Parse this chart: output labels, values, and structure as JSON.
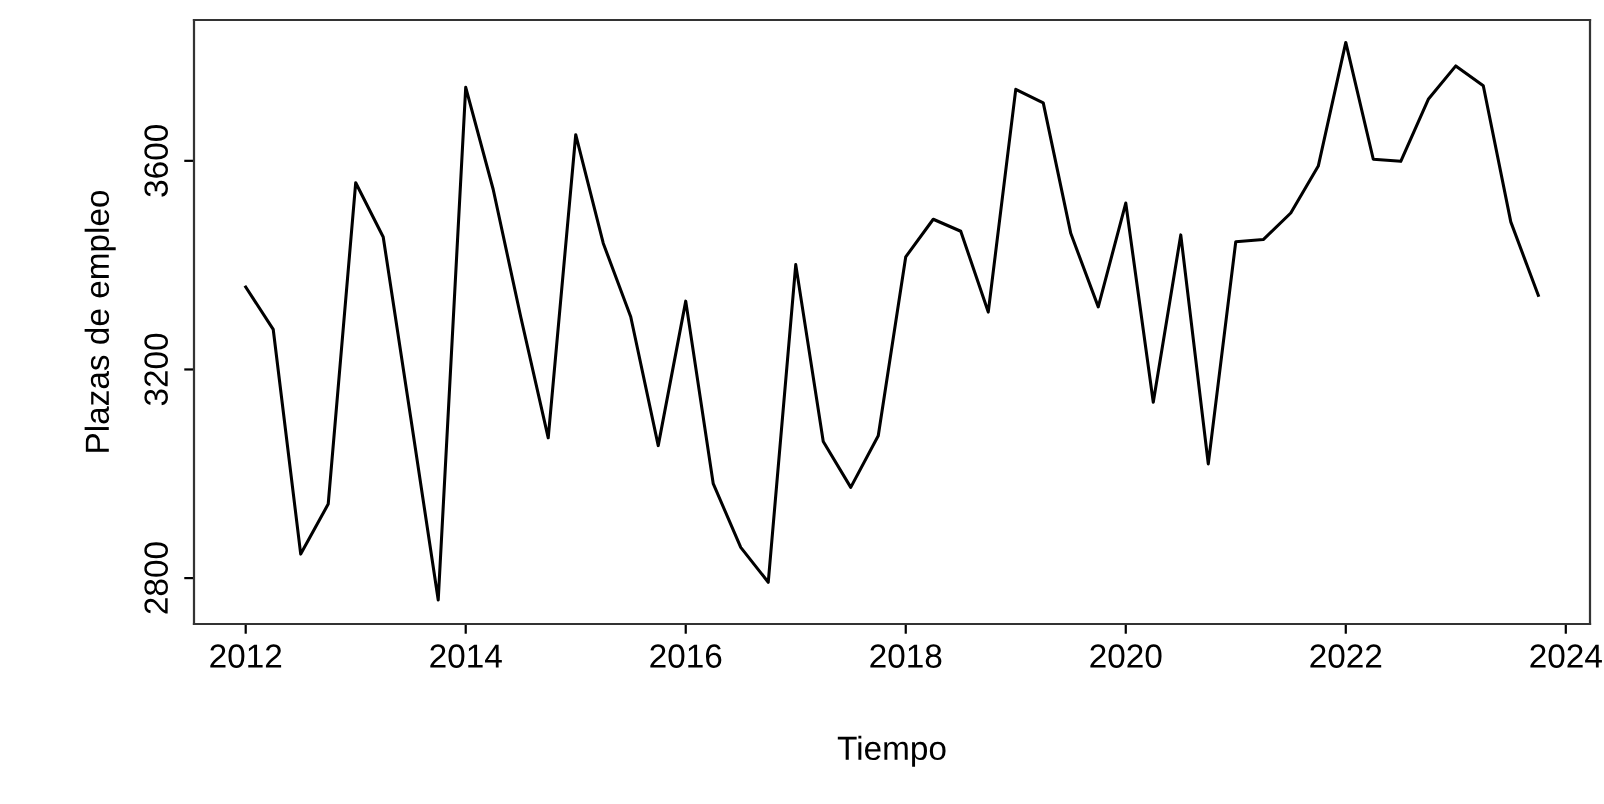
{
  "chart_data": {
    "type": "line",
    "xlabel": "Tiempo",
    "ylabel": "Plazas de empleo",
    "x": [
      2012,
      2012.25,
      2012.5,
      2012.75,
      2013,
      2013.25,
      2013.5,
      2013.75,
      2014,
      2014.25,
      2014.5,
      2014.75,
      2015,
      2015.25,
      2015.5,
      2015.75,
      2016,
      2016.25,
      2016.5,
      2016.75,
      2017,
      2017.25,
      2017.5,
      2017.75,
      2018,
      2018.25,
      2018.5,
      2018.75,
      2019,
      2019.25,
      2019.5,
      2019.75,
      2020,
      2020.25,
      2020.5,
      2020.75,
      2021,
      2021.25,
      2021.5,
      2021.75,
      2022,
      2022.25,
      2022.5,
      2022.75,
      2023,
      2023.25,
      2023.5,
      2023.75
    ],
    "series": [
      {
        "color": "#000000",
        "values": [
          3358,
          3277,
          2846,
          2942,
          3558,
          3454,
          3108,
          2758,
          3741,
          3545,
          3301,
          3069,
          3650,
          3442,
          3301,
          3054,
          3331,
          2981,
          2859,
          2792,
          3401,
          3062,
          2974,
          3073,
          3416,
          3488,
          3465,
          3310,
          3737,
          3711,
          3461,
          3320,
          3519,
          3137,
          3458,
          3019,
          3445,
          3449,
          3500,
          3590,
          3827,
          3603,
          3599,
          3718,
          3782,
          3744,
          3483,
          3342
        ]
      }
    ],
    "xlim": [
      2011.53,
      2024.22
    ],
    "ylim": [
      2712,
      3870
    ],
    "xticks": [
      2012,
      2014,
      2016,
      2018,
      2020,
      2022,
      2024
    ],
    "yticks": [
      2800,
      3200,
      3600
    ],
    "grid": false,
    "marker": "none",
    "line_style": "solid"
  }
}
